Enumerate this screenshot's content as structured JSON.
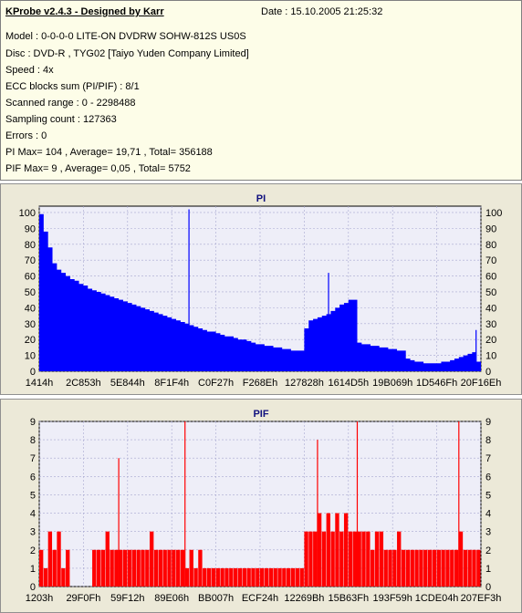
{
  "info": {
    "title": "KProbe v2.4.3 - Designed by Karr",
    "date": "Date : 15.10.2005 21:25:32",
    "lines": [
      "Model : 0-0-0-0 LITE-ON DVDRW SOHW-812S  US0S",
      "Disc : DVD-R , TYG02 [Taiyo Yuden Company Limited]",
      "Speed : 4x",
      "ECC blocks sum (PI/PIF) : 8/1",
      "Scanned range : 0 - 2298488",
      "Sampling count : 127363",
      "Errors : 0",
      "PI Max= 104 , Average= 19,71 , Total= 356188",
      "PIF Max= 9 , Average= 0,05 , Total= 5752"
    ]
  },
  "chart_data": [
    {
      "type": "area",
      "title": "PI",
      "color": "#0000ff",
      "ylim": [
        0,
        104
      ],
      "yticks": [
        0,
        10,
        20,
        30,
        40,
        50,
        60,
        70,
        80,
        90,
        100
      ],
      "xtick_labels": [
        "1414h",
        "2C853h",
        "5E844h",
        "8F1F4h",
        "C0F27h",
        "F268Eh",
        "127828h",
        "1614D5h",
        "19B069h",
        "1D546Fh",
        "20F16Eh"
      ],
      "x_fraction_of_scan": [
        0,
        0.1,
        0.2,
        0.3,
        0.4,
        0.5,
        0.6,
        0.7,
        0.8,
        0.9,
        1.0
      ],
      "values": [
        99,
        88,
        78,
        68,
        64,
        62,
        60,
        58,
        57,
        55,
        54,
        52,
        51,
        50,
        49,
        48,
        47,
        46,
        45,
        44,
        43,
        42,
        41,
        40,
        39,
        38,
        37,
        36,
        35,
        34,
        33,
        32,
        31,
        30,
        29,
        28,
        27,
        26,
        25,
        25,
        24,
        23,
        22,
        22,
        21,
        20,
        20,
        19,
        18,
        17,
        17,
        16,
        16,
        15,
        15,
        14,
        14,
        13,
        13,
        13,
        27,
        32,
        33,
        34,
        35,
        36,
        38,
        40,
        42,
        43,
        45,
        45,
        18,
        17,
        17,
        16,
        16,
        15,
        15,
        14,
        14,
        13,
        13,
        8,
        7,
        6,
        6,
        5,
        5,
        5,
        5,
        6,
        6,
        7,
        8,
        9,
        10,
        11,
        12,
        6
      ],
      "spikes": [
        {
          "x_fraction": 0.339,
          "y": 102
        },
        {
          "x_fraction": 0.655,
          "y": 62
        },
        {
          "x_fraction": 0.989,
          "y": 26
        }
      ]
    },
    {
      "type": "bar",
      "title": "PIF",
      "color": "#ff0000",
      "ylim": [
        0,
        9
      ],
      "yticks": [
        0,
        1,
        2,
        3,
        4,
        5,
        6,
        7,
        8,
        9
      ],
      "xtick_labels": [
        "1203h",
        "29F0Fh",
        "59F12h",
        "89E06h",
        "BB007h",
        "ECF24h",
        "12269Bh",
        "15B63Fh",
        "193F59h",
        "1CDE04h",
        "207EF3h"
      ],
      "x_fraction_of_scan": [
        0,
        0.1,
        0.2,
        0.3,
        0.4,
        0.5,
        0.6,
        0.7,
        0.8,
        0.9,
        1.0
      ],
      "values": [
        2,
        1,
        3,
        2,
        3,
        1,
        2,
        0,
        0,
        0,
        0,
        0,
        2,
        2,
        2,
        3,
        2,
        2,
        2,
        2,
        2,
        2,
        2,
        2,
        2,
        3,
        2,
        2,
        2,
        2,
        2,
        2,
        2,
        1,
        2,
        1,
        2,
        1,
        1,
        1,
        1,
        1,
        1,
        1,
        1,
        1,
        1,
        1,
        1,
        1,
        1,
        1,
        1,
        1,
        1,
        1,
        1,
        1,
        1,
        1,
        3,
        3,
        3,
        4,
        3,
        4,
        3,
        4,
        3,
        4,
        3,
        3,
        3,
        3,
        3,
        2,
        3,
        3,
        2,
        2,
        2,
        3,
        2,
        2,
        2,
        2,
        2,
        2,
        2,
        2,
        2,
        2,
        2,
        2,
        2,
        3,
        2,
        2,
        2,
        2
      ],
      "spikes": [
        {
          "x_fraction": 0.33,
          "y": 9
        },
        {
          "x_fraction": 0.72,
          "y": 9
        },
        {
          "x_fraction": 0.95,
          "y": 9
        },
        {
          "x_fraction": 0.18,
          "y": 7
        },
        {
          "x_fraction": 0.63,
          "y": 8
        }
      ]
    }
  ]
}
